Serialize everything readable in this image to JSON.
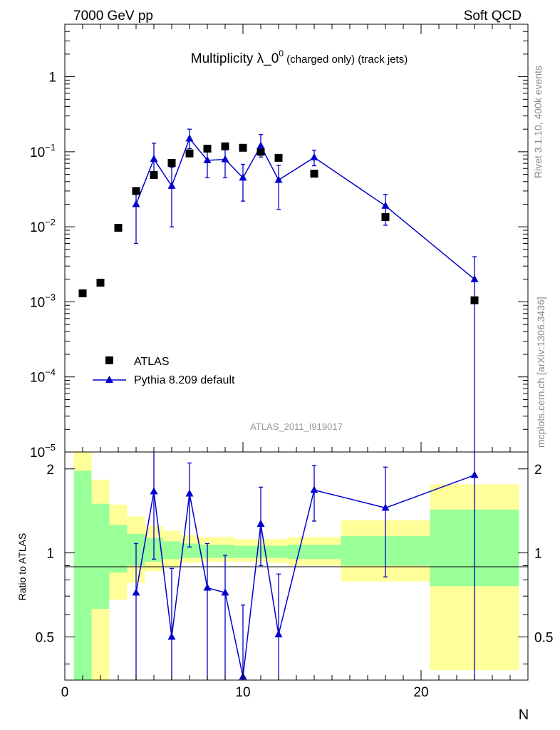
{
  "header": {
    "left": "7000 GeV pp",
    "right": "Soft QCD"
  },
  "side_text": {
    "rivet": "Rivet 3.1.10,  400k events",
    "mcplots": "mcplots.cern.ch [arXiv:1306.3436]"
  },
  "chart_data": [
    {
      "type": "scatter",
      "title_main": "Multiplicity λ_0",
      "title_sup": "0",
      "title_tail": " (charged only) (track jets)",
      "watermark": "ATLAS_2011_I919017",
      "xlabel": "N",
      "ylabel": "",
      "xlim": [
        0,
        26
      ],
      "ylim": [
        1e-05,
        5
      ],
      "yscale": "log",
      "x_ticks": [
        0,
        10,
        20
      ],
      "y_ticks": [
        {
          "v": 1,
          "base": "1",
          "exp": ""
        },
        {
          "v": 0.1,
          "base": "10",
          "exp": "−1"
        },
        {
          "v": 0.01,
          "base": "10",
          "exp": "−2"
        },
        {
          "v": 0.001,
          "base": "10",
          "exp": "−3"
        },
        {
          "v": 0.0001,
          "base": "10",
          "exp": "−4"
        },
        {
          "v": 1e-05,
          "base": "10",
          "exp": "−5"
        }
      ],
      "legend": {
        "position": "lower-left"
      },
      "series": [
        {
          "name": "ATLAS",
          "marker": "square",
          "color": "#000000",
          "x": [
            1,
            2,
            3,
            4,
            5,
            6,
            7,
            8,
            9,
            10,
            11,
            12,
            14,
            18,
            23
          ],
          "y": [
            0.0013,
            0.0018,
            0.0097,
            0.03,
            0.049,
            0.071,
            0.095,
            0.11,
            0.118,
            0.113,
            0.1,
            0.083,
            0.051,
            0.0135,
            0.00105
          ]
        },
        {
          "name": "Pythia 8.209 default",
          "marker": "triangle",
          "color": "#0000cc",
          "x": [
            4,
            5,
            6,
            7,
            8,
            9,
            10,
            11,
            12,
            14,
            18,
            23
          ],
          "y": [
            0.02,
            0.08,
            0.035,
            0.15,
            0.077,
            0.079,
            0.045,
            0.12,
            0.042,
            0.084,
            0.019,
            0.002
          ],
          "err_lo": [
            0.006,
            0.05,
            0.01,
            0.11,
            0.045,
            0.045,
            0.022,
            0.085,
            0.017,
            0.065,
            0.0105,
            1e-07
          ],
          "err_hi": [
            0.031,
            0.13,
            0.062,
            0.2,
            0.11,
            0.11,
            0.068,
            0.17,
            0.066,
            0.105,
            0.027,
            0.004
          ]
        }
      ]
    },
    {
      "type": "scatter",
      "ylabel": "Ratio to ATLAS",
      "xlim": [
        0,
        26
      ],
      "ylim": [
        0.35,
        2.3
      ],
      "yscale": "log",
      "y_ticks": [
        0.5,
        1,
        2
      ],
      "x_ticks": [
        0,
        10,
        20
      ],
      "reference_line": 1,
      "bands": [
        {
          "x0": 0.5,
          "x1": 1.5,
          "inner": [
            0.3,
            1.97
          ],
          "outer": [
            0.3,
            2.3
          ]
        },
        {
          "x0": 1.5,
          "x1": 2.5,
          "inner": [
            0.63,
            1.5
          ],
          "outer": [
            0.3,
            1.83
          ]
        },
        {
          "x0": 2.5,
          "x1": 3.5,
          "inner": [
            0.85,
            1.26
          ],
          "outer": [
            0.68,
            1.49
          ]
        },
        {
          "x0": 3.5,
          "x1": 4.5,
          "inner": [
            0.9,
            1.17
          ],
          "outer": [
            0.78,
            1.35
          ]
        },
        {
          "x0": 4.5,
          "x1": 5.5,
          "inner": [
            0.93,
            1.13
          ],
          "outer": [
            0.86,
            1.25
          ]
        },
        {
          "x0": 5.5,
          "x1": 6.5,
          "inner": [
            0.95,
            1.1
          ],
          "outer": [
            0.89,
            1.2
          ]
        },
        {
          "x0": 6.5,
          "x1": 7.5,
          "inner": [
            0.96,
            1.08
          ],
          "outer": [
            0.92,
            1.16
          ]
        },
        {
          "x0": 7.5,
          "x1": 8.5,
          "inner": [
            0.96,
            1.07
          ],
          "outer": [
            0.93,
            1.14
          ]
        },
        {
          "x0": 8.5,
          "x1": 9.5,
          "inner": [
            0.96,
            1.07
          ],
          "outer": [
            0.93,
            1.14
          ]
        },
        {
          "x0": 9.5,
          "x1": 10.5,
          "inner": [
            0.96,
            1.06
          ],
          "outer": [
            0.93,
            1.12
          ]
        },
        {
          "x0": 10.5,
          "x1": 11.5,
          "inner": [
            0.96,
            1.06
          ],
          "outer": [
            0.93,
            1.12
          ]
        },
        {
          "x0": 11.5,
          "x1": 12.5,
          "inner": [
            0.96,
            1.06
          ],
          "outer": [
            0.92,
            1.12
          ]
        },
        {
          "x0": 12.5,
          "x1": 15.5,
          "inner": [
            0.95,
            1.07
          ],
          "outer": [
            0.9,
            1.14
          ]
        },
        {
          "x0": 15.5,
          "x1": 20.5,
          "inner": [
            0.9,
            1.15
          ],
          "outer": [
            0.79,
            1.31
          ]
        },
        {
          "x0": 20.5,
          "x1": 25.5,
          "inner": [
            0.76,
            1.43
          ],
          "outer": [
            0.38,
            1.76
          ]
        }
      ],
      "series": [
        {
          "name": "Pythia 8.209 default",
          "color": "#0000cc",
          "x": [
            4,
            5,
            6,
            7,
            8,
            9,
            10,
            11,
            12,
            14,
            18,
            23
          ],
          "y": [
            0.72,
            1.66,
            0.5,
            1.63,
            0.75,
            0.72,
            0.36,
            1.27,
            0.51,
            1.68,
            1.45,
            1.9
          ],
          "err_lo": [
            0.3,
            0.95,
            0.3,
            1.05,
            0.35,
            0.3,
            0.3,
            0.9,
            0.3,
            1.3,
            0.82,
            0.3
          ],
          "err_hi": [
            1.08,
            2.3,
            0.88,
            2.1,
            1.08,
            0.98,
            0.65,
            1.72,
            0.84,
            2.06,
            2.03,
            2.3
          ]
        }
      ]
    }
  ]
}
